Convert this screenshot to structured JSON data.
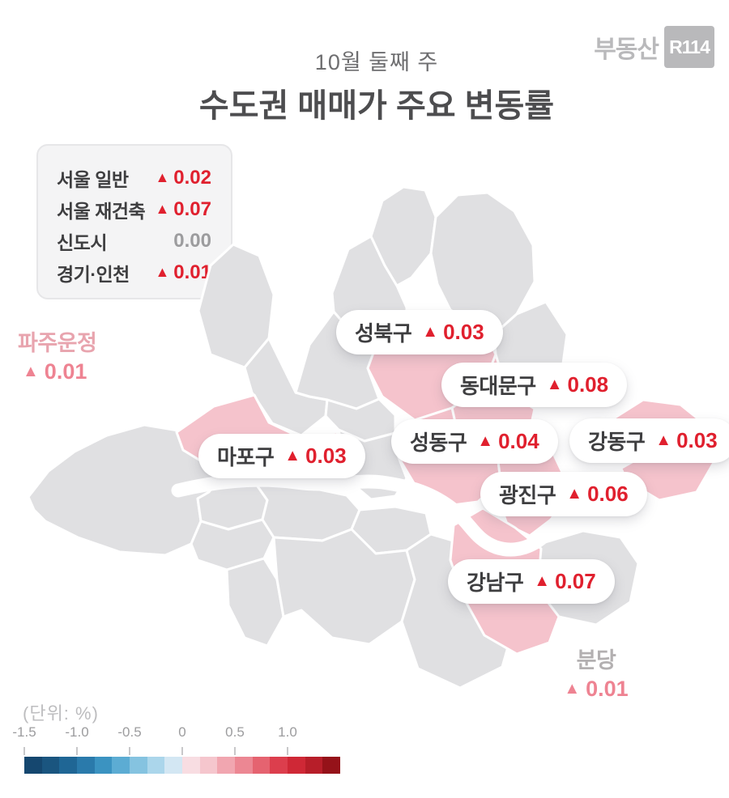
{
  "header": {
    "subtitle": "10월 둘째 주",
    "title": "수도권 매매가 주요 변동률",
    "logo_word": "부동산",
    "logo_badge": "R114"
  },
  "glyphs": {
    "up_triangle": "▲"
  },
  "summary": {
    "rows": [
      {
        "label": "서울 일반",
        "prefix": "▲",
        "value": "0.02"
      },
      {
        "label": "서울 재건축",
        "prefix": "▲",
        "value": "0.07"
      },
      {
        "label": "신도시",
        "prefix": "",
        "value": "0.00"
      },
      {
        "label": "경기·인천",
        "prefix": "▲",
        "value": "0.01"
      }
    ]
  },
  "callouts": [
    {
      "name": "성북구",
      "value": "0.03"
    },
    {
      "name": "동대문구",
      "value": "0.08"
    },
    {
      "name": "성동구",
      "value": "0.04"
    },
    {
      "name": "강동구",
      "value": "0.03"
    },
    {
      "name": "마포구",
      "value": "0.03"
    },
    {
      "name": "광진구",
      "value": "0.06"
    },
    {
      "name": "강남구",
      "value": "0.07"
    }
  ],
  "outside_labels": {
    "paju": {
      "name": "파주운정",
      "value": "0.01"
    },
    "bundang": {
      "name": "분당",
      "value": "0.01"
    }
  },
  "scale": {
    "unit_label": "(단위:  %)",
    "ticks": [
      "-1.5",
      "-1.0",
      "-0.5",
      "0",
      "0.5",
      "1.0"
    ],
    "colors": [
      "#15476f",
      "#1a557f",
      "#1f6695",
      "#2a7aab",
      "#3b93c1",
      "#5cacd3",
      "#85c3e0",
      "#abd6eb",
      "#d3e7f3",
      "#f8dde2",
      "#f5c6cd",
      "#f1a6b0",
      "#ec8793",
      "#e56370",
      "#dc3e4d",
      "#cf2836",
      "#b71e29",
      "#951219"
    ]
  },
  "theme": {
    "bg": "#ffffff",
    "title-color": "#4d4d4f",
    "subtitle-color": "#6e6e70",
    "text-dark": "#3e3e40",
    "red": "#e0202e",
    "gray-value": "#9c9c9e",
    "box-bg": "#f4f4f5",
    "box-border": "#e6e6e8",
    "district-fill": "#e0e0e2",
    "district-highlight": "#f5c3cc",
    "map-border": "#ffffff",
    "pink-label": "#e8a4ae",
    "pink-value": "#ee8392",
    "muted-label": "#b3b0b1",
    "logo-gray": "#b9b9bb",
    "scale-label": "#9c9c9e",
    "unit-label": "#bdbdbf",
    "tick-color": "#c8c8ca"
  },
  "chart_data": {
    "type": "choropleth",
    "title": "수도권 매매가 주요 변동률",
    "subtitle": "10월 둘째 주",
    "unit": "%",
    "summary_series": [
      {
        "name": "서울 일반",
        "change": 0.02
      },
      {
        "name": "서울 재건축",
        "change": 0.07
      },
      {
        "name": "신도시",
        "change": 0.0
      },
      {
        "name": "경기·인천",
        "change": 0.01
      }
    ],
    "regions": [
      {
        "name": "성북구",
        "change": 0.03,
        "highlighted": true
      },
      {
        "name": "동대문구",
        "change": 0.08,
        "highlighted": true
      },
      {
        "name": "성동구",
        "change": 0.04,
        "highlighted": true
      },
      {
        "name": "강동구",
        "change": 0.03,
        "highlighted": true
      },
      {
        "name": "마포구",
        "change": 0.03,
        "highlighted": true
      },
      {
        "name": "광진구",
        "change": 0.06,
        "highlighted": true
      },
      {
        "name": "강남구",
        "change": 0.07,
        "highlighted": true
      },
      {
        "name": "파주운정",
        "change": 0.01,
        "highlighted": false
      },
      {
        "name": "분당",
        "change": 0.01,
        "highlighted": false
      }
    ],
    "colorbar": {
      "min": -1.5,
      "max": 1.5,
      "tick_labels": [
        "-1.5",
        "-1.0",
        "-0.5",
        "0",
        "0.5",
        "1.0"
      ],
      "colors": [
        "#15476f",
        "#1a557f",
        "#1f6695",
        "#2a7aab",
        "#3b93c1",
        "#5cacd3",
        "#85c3e0",
        "#abd6eb",
        "#d3e7f3",
        "#f8dde2",
        "#f5c6cd",
        "#f1a6b0",
        "#ec8793",
        "#e56370",
        "#dc3e4d",
        "#cf2836",
        "#b71e29",
        "#951219"
      ]
    },
    "legend_position": "bottom-left",
    "grid": false
  }
}
